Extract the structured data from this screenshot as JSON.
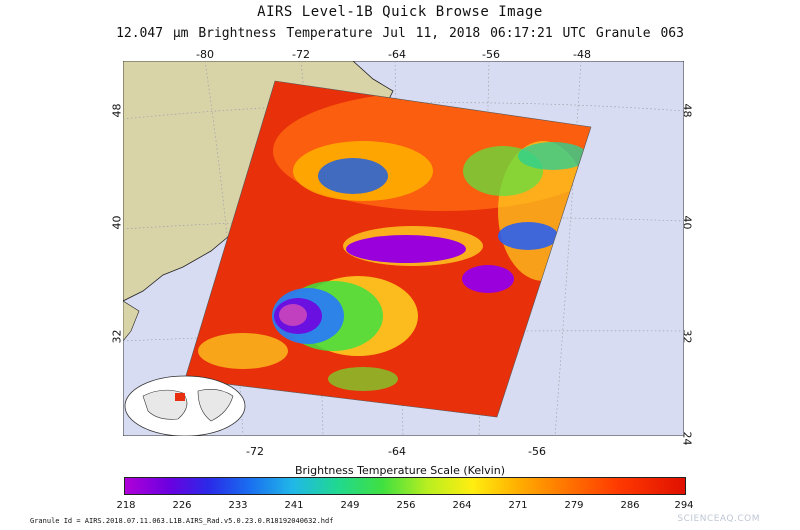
{
  "header": {
    "title": "AIRS Level-1B Quick Browse Image",
    "subtitle": "12.047 µm Brightness Temperature   Jul 11, 2018 06:17:21 UTC   Granule 063"
  },
  "map": {
    "top_longitudes": [
      "-80",
      "-72",
      "-64",
      "-56",
      "-48"
    ],
    "bottom_longitudes": [
      "-72",
      "-64",
      "-56"
    ],
    "left_latitudes": [
      "48",
      "40",
      "32"
    ],
    "right_latitudes": [
      "48",
      "40",
      "32",
      "24"
    ],
    "colors": {
      "ocean": "#d8dcf2",
      "land": "#d9d3a8"
    }
  },
  "scale": {
    "title": "Brightness Temperature Scale (Kelvin)",
    "ticks": [
      "218",
      "226",
      "233",
      "241",
      "249",
      "256",
      "264",
      "271",
      "279",
      "286",
      "294"
    ]
  },
  "footer": {
    "granule": "Granule Id = AIRS.2018.07.11.063.L1B.AIRS_Rad.v5.0.23.0.R18192040632.hdf",
    "credit": "SCIENCEAQ.COM"
  }
}
